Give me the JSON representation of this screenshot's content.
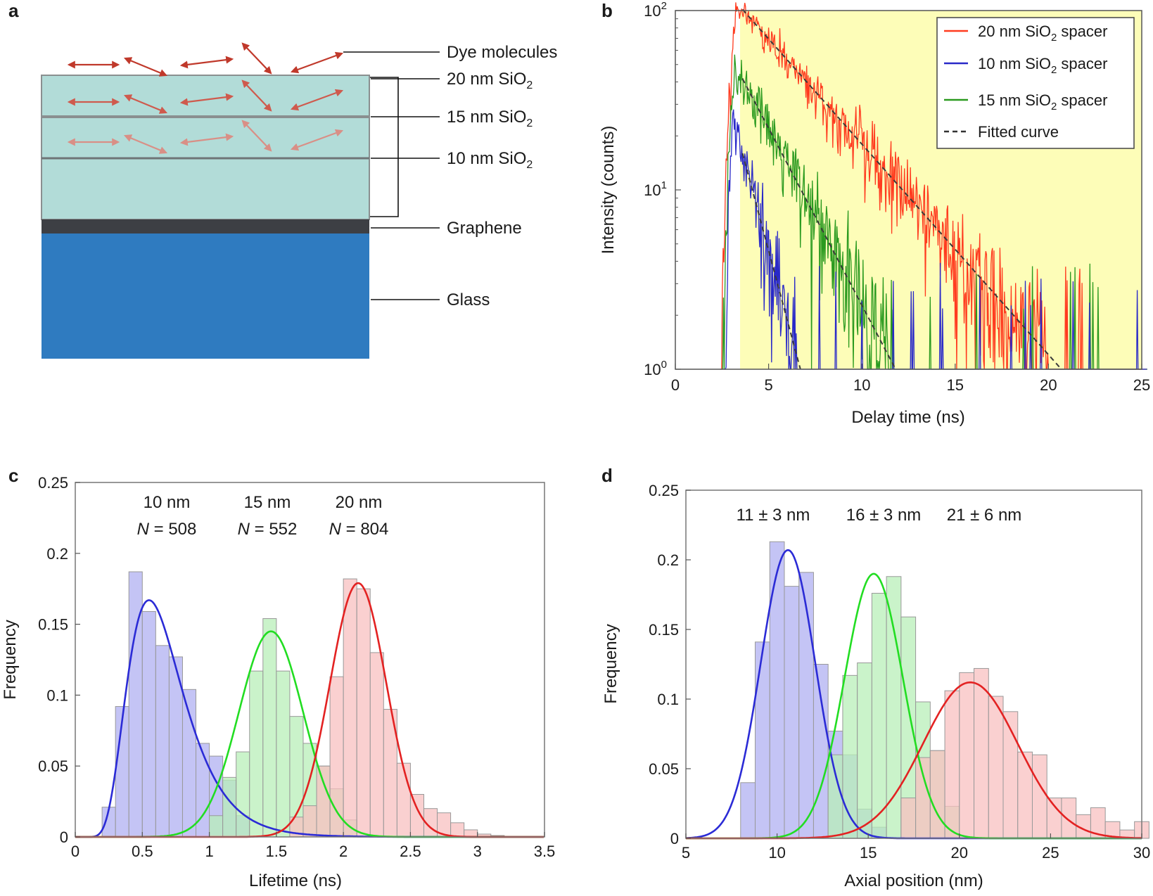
{
  "figure": {
    "panel_labels": [
      "a",
      "b",
      "c",
      "d"
    ]
  },
  "panel_a": {
    "labels": {
      "dye": "Dye molecules",
      "sio2_20": "20 nm SiO",
      "sio2_15": "15 nm SiO",
      "sio2_10": "10 nm SiO",
      "subscript": "2",
      "graphene": "Graphene",
      "glass": "Glass"
    },
    "colors": {
      "layer": "#b2dcd8",
      "graphene": "#3d3f44",
      "glass": "#2f7bc0",
      "arrow": "#c0392b"
    }
  },
  "chart_data": [
    {
      "panel": "b",
      "type": "line",
      "yscale": "log",
      "xlabel": "Delay time (ns)",
      "ylabel": "Intensity (counts)",
      "xlim": [
        0,
        25
      ],
      "ylim": [
        1,
        100
      ],
      "xticks": [
        "0",
        "5",
        "10",
        "15",
        "20",
        "25"
      ],
      "yticks": [
        {
          "base": "10",
          "exp": "0"
        },
        {
          "base": "10",
          "exp": "1"
        },
        {
          "base": "10",
          "exp": "2"
        }
      ],
      "background": "#fdfdb8",
      "legend_position": "top-right",
      "series": [
        {
          "name": "20 nm SiO",
          "sub": "2",
          "name_suffix": " spacer",
          "color": "#ff3b1f",
          "peak_time": 3.3,
          "peak_counts": 110,
          "lifetime_ns": 3.7,
          "rise_start": 2.4
        },
        {
          "name": "10 nm SiO",
          "sub": "2",
          "name_suffix": " spacer",
          "color": "#2929c8",
          "peak_time": 3.1,
          "peak_counts": 25,
          "lifetime_ns": 1.12,
          "rise_start": 2.6
        },
        {
          "name": "15 nm SiO",
          "sub": "2",
          "name_suffix": " spacer",
          "color": "#2a9a1f",
          "peak_time": 3.2,
          "peak_counts": 50,
          "lifetime_ns": 2.2,
          "rise_start": 2.5
        },
        {
          "name": "Fitted curve",
          "sub": "",
          "name_suffix": "",
          "color": "#333333",
          "dashed": true
        }
      ]
    },
    {
      "panel": "c",
      "type": "bar",
      "xlabel": "Lifetime (ns)",
      "ylabel": "Frequency",
      "xlim": [
        0,
        3.5
      ],
      "ylim": [
        0,
        0.25
      ],
      "xticks": [
        "0",
        "0.5",
        "1",
        "1.5",
        "2",
        "2.5",
        "3",
        "3.5"
      ],
      "yticks": [
        "0",
        "0.05",
        "0.1",
        "0.15",
        "0.2",
        "0.25"
      ],
      "annotations": [
        {
          "title": "10 nm",
          "n_label": "N",
          "n_text": " = 508"
        },
        {
          "title": "15 nm",
          "n_label": "N",
          "n_text": " = 552"
        },
        {
          "title": "20 nm",
          "n_label": "N",
          "n_text": " = 804"
        }
      ],
      "series": [
        {
          "name": "10 nm",
          "color": "#2b2bd6",
          "fill": "#b0b0f2",
          "bin_width": 0.1,
          "bin_starts": [
            0.2,
            0.3,
            0.4,
            0.5,
            0.6,
            0.7,
            0.8,
            0.9,
            1.0,
            1.1,
            1.2
          ],
          "values": [
            0.021,
            0.092,
            0.187,
            0.159,
            0.135,
            0.127,
            0.104,
            0.066,
            0.057,
            0.04,
            0.015
          ],
          "fit": {
            "type": "lognormal",
            "amp": 0.167,
            "mode": 0.55,
            "sigma": 0.38
          }
        },
        {
          "name": "15 nm",
          "color": "#22dd22",
          "fill": "#b8efb8",
          "bin_width": 0.1,
          "bin_starts": [
            1.0,
            1.1,
            1.2,
            1.3,
            1.4,
            1.5,
            1.6,
            1.7,
            1.8,
            1.9,
            2.0
          ],
          "values": [
            0.015,
            0.042,
            0.06,
            0.117,
            0.154,
            0.117,
            0.085,
            0.066,
            0.05,
            0.034,
            0.012
          ],
          "fit": {
            "type": "gaussian",
            "amp": 0.145,
            "mu": 1.46,
            "sigma": 0.24
          }
        },
        {
          "name": "20 nm",
          "color": "#e32222",
          "fill": "#f8c0c0",
          "bin_width": 0.1,
          "bin_starts": [
            1.6,
            1.7,
            1.8,
            1.9,
            2.0,
            2.1,
            2.2,
            2.3,
            2.4,
            2.5,
            2.6,
            2.7,
            2.8,
            2.9,
            3.0,
            3.1
          ],
          "values": [
            0.014,
            0.022,
            0.05,
            0.113,
            0.182,
            0.175,
            0.13,
            0.09,
            0.052,
            0.03,
            0.02,
            0.017,
            0.01,
            0.005,
            0.002,
            0.001
          ],
          "fit": {
            "type": "gaussian",
            "amp": 0.179,
            "mu": 2.11,
            "sigma": 0.21
          }
        }
      ]
    },
    {
      "panel": "d",
      "type": "bar",
      "xlabel": "Axial position (nm)",
      "ylabel": "Frequency",
      "xlim": [
        5,
        30
      ],
      "ylim": [
        0,
        0.25
      ],
      "xticks": [
        "5",
        "10",
        "15",
        "20",
        "25",
        "30"
      ],
      "yticks": [
        "0",
        "0.05",
        "0.1",
        "0.15",
        "0.2",
        "0.25"
      ],
      "annotations": [
        {
          "title": "11 ± 3 nm"
        },
        {
          "title": "16 ± 3 nm"
        },
        {
          "title": "21 ± 6 nm"
        }
      ],
      "series": [
        {
          "name": "11 nm",
          "color": "#2b2bd6",
          "fill": "#b0b0f2",
          "bin_width": 0.8,
          "bin_starts": [
            8.0,
            8.8,
            9.6,
            10.4,
            11.2,
            12.0,
            12.8,
            13.6,
            14.4,
            15.2
          ],
          "values": [
            0.04,
            0.141,
            0.213,
            0.181,
            0.191,
            0.125,
            0.077,
            0.06,
            0.021,
            0.008
          ],
          "fit": {
            "type": "gaussian",
            "amp": 0.207,
            "mu": 10.6,
            "sigma": 1.5
          }
        },
        {
          "name": "16 nm",
          "color": "#22dd22",
          "fill": "#b8efb8",
          "bin_width": 0.8,
          "bin_starts": [
            12.8,
            13.6,
            14.4,
            15.2,
            16.0,
            16.8,
            17.6,
            18.4,
            19.2
          ],
          "values": [
            0.06,
            0.117,
            0.126,
            0.176,
            0.188,
            0.159,
            0.098,
            0.063,
            0.023
          ],
          "fit": {
            "type": "gaussian",
            "amp": 0.19,
            "mu": 15.3,
            "sigma": 1.6
          }
        },
        {
          "name": "21 nm",
          "color": "#e32222",
          "fill": "#f8c0c0",
          "bin_width": 0.8,
          "bin_starts": [
            16.8,
            17.6,
            18.4,
            19.2,
            20.0,
            20.8,
            21.6,
            22.4,
            23.2,
            24.0,
            24.8,
            25.6,
            26.4,
            27.2,
            28.0,
            28.8,
            29.6
          ],
          "values": [
            0.029,
            0.058,
            0.063,
            0.106,
            0.119,
            0.122,
            0.102,
            0.091,
            0.062,
            0.06,
            0.029,
            0.029,
            0.017,
            0.022,
            0.012,
            0.006,
            0.012
          ],
          "fit": {
            "type": "gaussian",
            "amp": 0.112,
            "mu": 20.6,
            "sigma": 2.6
          }
        }
      ]
    }
  ]
}
